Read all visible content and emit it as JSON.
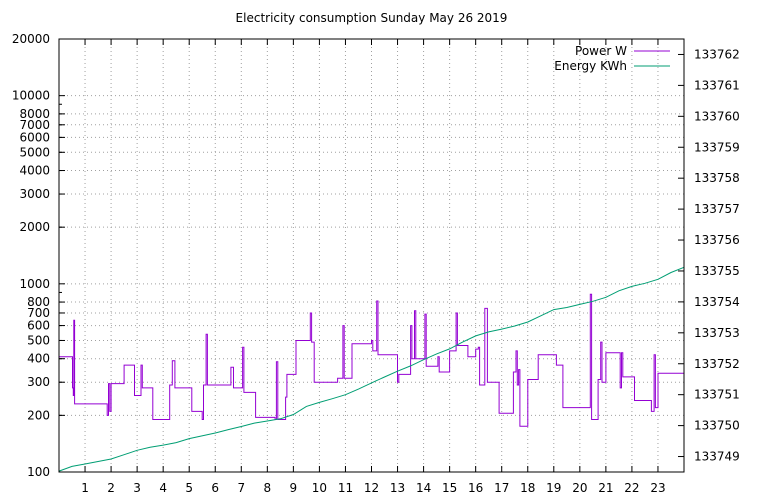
{
  "chart_data": {
    "type": "line",
    "title": "Electricity consumption Sunday May 26 2019",
    "xlabel": "",
    "ylabel": "",
    "y2label": "",
    "x_range": [
      0,
      24
    ],
    "y_range": [
      100,
      20000
    ],
    "y_scale": "log",
    "y2_range": [
      133748.5,
      133762.5
    ],
    "grid": true,
    "legend_position": "top-right",
    "x_ticks": [
      1,
      2,
      3,
      4,
      5,
      6,
      7,
      8,
      9,
      10,
      11,
      12,
      13,
      14,
      15,
      16,
      17,
      18,
      19,
      20,
      21,
      22,
      23
    ],
    "x_tick_labels": [
      "1",
      "2",
      "3",
      "4",
      "5",
      "6",
      "7",
      "8",
      "9",
      "10",
      "11",
      "12",
      "13",
      "14",
      "15",
      "16",
      "17",
      "18",
      "19",
      "20",
      "21",
      "22",
      "23"
    ],
    "y_ticks": [
      100,
      200,
      300,
      400,
      500,
      600,
      700,
      800,
      1000,
      2000,
      3000,
      4000,
      5000,
      6000,
      7000,
      8000,
      10000,
      20000
    ],
    "y_tick_labels": [
      "100",
      "200",
      "300",
      "400",
      "500",
      "600",
      "700",
      "800",
      "1000",
      "2000",
      "3000",
      "4000",
      "5000",
      "6000",
      "7000",
      "8000",
      "10000",
      "20000"
    ],
    "y2_ticks": [
      133749,
      133750,
      133751,
      133752,
      133753,
      133754,
      133755,
      133756,
      133757,
      133758,
      133759,
      133760,
      133761,
      133762
    ],
    "y2_tick_labels": [
      "133749",
      "133750",
      "133751",
      "133752",
      "133753",
      "133754",
      "133755",
      "133756",
      "133757",
      "133758",
      "133759",
      "133760",
      "133761",
      "133762"
    ],
    "series": [
      {
        "name": "Power W",
        "color": "#9400d3",
        "axis": "left",
        "style": "steps",
        "points": [
          [
            0,
            410
          ],
          [
            0.5,
            410
          ],
          [
            0.52,
            280
          ],
          [
            0.55,
            255
          ],
          [
            0.57,
            640
          ],
          [
            0.6,
            230
          ],
          [
            1.6,
            230
          ],
          [
            1.8,
            230
          ],
          [
            1.85,
            200
          ],
          [
            1.9,
            295
          ],
          [
            1.95,
            210
          ],
          [
            2.0,
            295
          ],
          [
            2.45,
            295
          ],
          [
            2.5,
            370
          ],
          [
            2.85,
            370
          ],
          [
            2.9,
            255
          ],
          [
            3.1,
            255
          ],
          [
            3.15,
            370
          ],
          [
            3.2,
            280
          ],
          [
            3.55,
            280
          ],
          [
            3.6,
            190
          ],
          [
            4.2,
            190
          ],
          [
            4.25,
            290
          ],
          [
            4.35,
            390
          ],
          [
            4.45,
            280
          ],
          [
            5.05,
            280
          ],
          [
            5.1,
            210
          ],
          [
            5.45,
            210
          ],
          [
            5.5,
            190
          ],
          [
            5.55,
            290
          ],
          [
            5.65,
            540
          ],
          [
            5.7,
            290
          ],
          [
            6.5,
            290
          ],
          [
            6.6,
            360
          ],
          [
            6.7,
            280
          ],
          [
            7.0,
            280
          ],
          [
            7.05,
            460
          ],
          [
            7.1,
            265
          ],
          [
            7.5,
            265
          ],
          [
            7.55,
            195
          ],
          [
            8.25,
            195
          ],
          [
            8.3,
            190
          ],
          [
            8.35,
            385
          ],
          [
            8.4,
            190
          ],
          [
            8.65,
            190
          ],
          [
            8.7,
            250
          ],
          [
            8.75,
            330
          ],
          [
            9.05,
            330
          ],
          [
            9.1,
            500
          ],
          [
            9.6,
            500
          ],
          [
            9.65,
            700
          ],
          [
            9.7,
            490
          ],
          [
            9.8,
            300
          ],
          [
            10.65,
            300
          ],
          [
            10.7,
            315
          ],
          [
            10.85,
            315
          ],
          [
            10.9,
            600
          ],
          [
            10.95,
            315
          ],
          [
            11.2,
            315
          ],
          [
            11.25,
            480
          ],
          [
            11.9,
            480
          ],
          [
            12.0,
            500
          ],
          [
            12.05,
            440
          ],
          [
            12.15,
            440
          ],
          [
            12.2,
            810
          ],
          [
            12.25,
            420
          ],
          [
            12.95,
            420
          ],
          [
            13.0,
            300
          ],
          [
            13.05,
            330
          ],
          [
            13.45,
            330
          ],
          [
            13.5,
            600
          ],
          [
            13.55,
            400
          ],
          [
            13.65,
            720
          ],
          [
            13.7,
            400
          ],
          [
            13.95,
            400
          ],
          [
            14.05,
            690
          ],
          [
            14.1,
            365
          ],
          [
            14.5,
            365
          ],
          [
            14.55,
            410
          ],
          [
            14.6,
            340
          ],
          [
            14.95,
            340
          ],
          [
            15.0,
            440
          ],
          [
            15.2,
            440
          ],
          [
            15.25,
            700
          ],
          [
            15.3,
            470
          ],
          [
            15.65,
            470
          ],
          [
            15.7,
            410
          ],
          [
            15.95,
            410
          ],
          [
            16.0,
            450
          ],
          [
            16.1,
            460
          ],
          [
            16.15,
            290
          ],
          [
            16.3,
            290
          ],
          [
            16.35,
            740
          ],
          [
            16.45,
            300
          ],
          [
            16.85,
            300
          ],
          [
            16.9,
            205
          ],
          [
            17.4,
            205
          ],
          [
            17.45,
            340
          ],
          [
            17.55,
            440
          ],
          [
            17.6,
            290
          ],
          [
            17.65,
            350
          ],
          [
            17.7,
            175
          ],
          [
            17.95,
            175
          ],
          [
            18.0,
            310
          ],
          [
            18.35,
            310
          ],
          [
            18.4,
            420
          ],
          [
            19.05,
            420
          ],
          [
            19.1,
            370
          ],
          [
            19.3,
            370
          ],
          [
            19.35,
            220
          ],
          [
            20.35,
            220
          ],
          [
            20.4,
            880
          ],
          [
            20.45,
            190
          ],
          [
            20.65,
            190
          ],
          [
            20.7,
            310
          ],
          [
            20.8,
            490
          ],
          [
            20.85,
            300
          ],
          [
            21.0,
            430
          ],
          [
            21.5,
            430
          ],
          [
            21.55,
            280
          ],
          [
            21.6,
            430
          ],
          [
            21.65,
            320
          ],
          [
            22.05,
            320
          ],
          [
            22.1,
            240
          ],
          [
            22.7,
            240
          ],
          [
            22.75,
            210
          ],
          [
            22.85,
            420
          ],
          [
            22.9,
            220
          ],
          [
            23.0,
            335
          ],
          [
            24.0,
            335
          ]
        ]
      },
      {
        "name": "Energy KWh",
        "color": "#009e73",
        "axis": "right",
        "style": "line",
        "points": [
          [
            0,
            133748.53
          ],
          [
            0.5,
            133748.68
          ],
          [
            1.0,
            133748.76
          ],
          [
            2.0,
            133748.92
          ],
          [
            2.5,
            133749.06
          ],
          [
            3.0,
            133749.2
          ],
          [
            3.5,
            133749.3
          ],
          [
            4.0,
            133749.37
          ],
          [
            4.5,
            133749.45
          ],
          [
            5.0,
            133749.58
          ],
          [
            6.0,
            133749.76
          ],
          [
            6.5,
            133749.87
          ],
          [
            7.0,
            133749.97
          ],
          [
            7.5,
            133750.08
          ],
          [
            8.0,
            133750.15
          ],
          [
            8.5,
            133750.22
          ],
          [
            9.0,
            133750.36
          ],
          [
            9.5,
            133750.62
          ],
          [
            10.0,
            133750.75
          ],
          [
            10.5,
            133750.87
          ],
          [
            11.0,
            133751.0
          ],
          [
            11.5,
            133751.18
          ],
          [
            12.0,
            133751.38
          ],
          [
            12.5,
            133751.57
          ],
          [
            13.0,
            133751.76
          ],
          [
            13.5,
            133751.93
          ],
          [
            14.0,
            133752.13
          ],
          [
            14.5,
            133752.32
          ],
          [
            15.0,
            133752.48
          ],
          [
            15.5,
            133752.7
          ],
          [
            16.0,
            133752.9
          ],
          [
            16.5,
            133753.03
          ],
          [
            17.0,
            133753.12
          ],
          [
            17.5,
            133753.22
          ],
          [
            18.0,
            133753.35
          ],
          [
            18.5,
            133753.55
          ],
          [
            19.0,
            133753.75
          ],
          [
            19.5,
            133753.82
          ],
          [
            20.0,
            133753.92
          ],
          [
            20.5,
            133754.02
          ],
          [
            21.0,
            133754.15
          ],
          [
            21.5,
            133754.36
          ],
          [
            22.0,
            133754.5
          ],
          [
            22.5,
            133754.6
          ],
          [
            23.0,
            133754.73
          ],
          [
            23.5,
            133754.95
          ],
          [
            24.0,
            133755.12
          ]
        ]
      }
    ]
  }
}
